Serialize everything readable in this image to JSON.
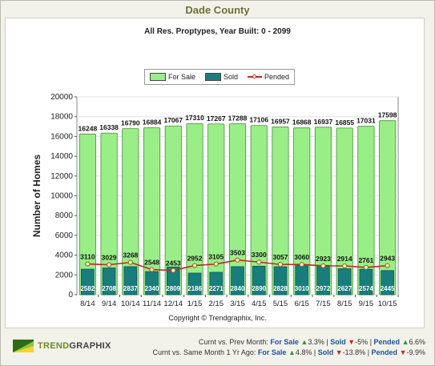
{
  "title": "Dade County",
  "subtitle": "All Res. Proptypes, Year Built: 0 - 2099",
  "legend": {
    "for_sale": "For Sale",
    "sold": "Sold",
    "pended": "Pended"
  },
  "copyright": "Copyright © Trendgraphix, Inc.",
  "logo": {
    "part1": "TREND",
    "part2": "GRAPHIX"
  },
  "footer": {
    "line1_label": "Curnt vs. Prev Month:",
    "line2_label": "Curnt vs. Same Month 1 Yr Ago:",
    "for_sale_label": "For Sale",
    "sold_label": "Sold",
    "pended_label": "Pended",
    "prev_for_sale": "3.3%",
    "prev_sold": "-5%",
    "prev_pended": "6.6%",
    "yoy_for_sale": "4.8%",
    "yoy_sold": "-13.8%",
    "yoy_pended": "-9.9%"
  },
  "colors": {
    "for_sale": "#99ee88",
    "sold": "#1a7d7d",
    "pended": "#c2281e",
    "title": "#6f6f3c"
  },
  "chart_data": {
    "type": "bar",
    "title": "Dade County",
    "subtitle": "All Res. Proptypes, Year Built: 0 - 2099",
    "ylabel": "Number of Homes",
    "xlabel": "",
    "ylim": [
      0,
      20000
    ],
    "yticks": [
      0,
      2000,
      4000,
      6000,
      8000,
      10000,
      12000,
      14000,
      16000,
      18000,
      20000
    ],
    "grid": true,
    "legend_position": "top-center",
    "categories": [
      "8/14",
      "9/14",
      "10/14",
      "11/14",
      "12/14",
      "1/15",
      "2/15",
      "3/15",
      "4/15",
      "5/15",
      "6/15",
      "7/15",
      "8/15",
      "9/15",
      "10/15"
    ],
    "series": [
      {
        "name": "For Sale",
        "type": "bar",
        "values": [
          16248,
          16338,
          16790,
          16884,
          17067,
          17310,
          17267,
          17288,
          17106,
          16957,
          16868,
          16937,
          16855,
          17031,
          17598
        ]
      },
      {
        "name": "Sold",
        "type": "bar",
        "values": [
          2582,
          2708,
          2837,
          2340,
          2809,
          2186,
          2271,
          2840,
          2890,
          2828,
          3010,
          2972,
          2627,
          2574,
          2445
        ]
      },
      {
        "name": "Pended",
        "type": "line",
        "values": [
          3110,
          3029,
          3268,
          2548,
          2453,
          2952,
          3105,
          3503,
          3300,
          3057,
          3060,
          2923,
          2914,
          2761,
          2943
        ]
      }
    ]
  }
}
